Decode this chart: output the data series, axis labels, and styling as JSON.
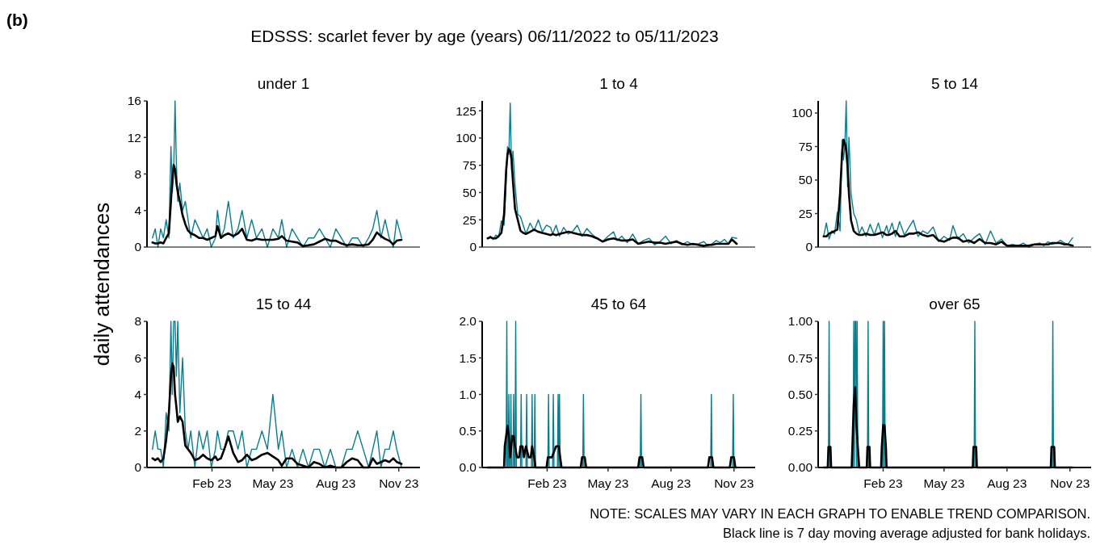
{
  "chart_data": [
    {
      "type": "other",
      "title": "EDSSS: scarlet fever by age (years) 06/11/2022 to 05/11/2023",
      "ylabel": "daily attendances",
      "annotations": [
        "(b)",
        "NOTE: SCALES MAY VARY IN EACH GRAPH TO ENABLE TREND COMPARISON.",
        "Black line is 7 day moving average adjusted for bank holidays."
      ]
    },
    {
      "type": "line",
      "title": "under 1",
      "xlim": [
        "2022-10-29",
        "2023-12-02"
      ],
      "ylim": [
        0,
        16
      ],
      "yticks": [
        0,
        4,
        8,
        12,
        16
      ],
      "tick_labels": "y",
      "x": [
        "2022-11-06",
        "2022-11-10",
        "2022-11-14",
        "2022-11-18",
        "2022-11-22",
        "2022-11-26",
        "2022-11-30",
        "2022-12-03",
        "2022-12-05",
        "2022-12-07",
        "2022-12-09",
        "2022-12-11",
        "2022-12-13",
        "2022-12-16",
        "2022-12-20",
        "2022-12-24",
        "2022-12-28",
        "2023-01-01",
        "2023-01-07",
        "2023-01-13",
        "2023-01-19",
        "2023-01-25",
        "2023-01-31",
        "2023-02-06",
        "2023-02-09",
        "2023-02-14",
        "2023-02-19",
        "2023-02-25",
        "2023-03-04",
        "2023-03-11",
        "2023-03-17",
        "2023-03-24",
        "2023-03-31",
        "2023-04-07",
        "2023-04-15",
        "2023-04-23",
        "2023-05-01",
        "2023-05-09",
        "2023-05-14",
        "2023-05-21",
        "2023-05-29",
        "2023-06-06",
        "2023-06-14",
        "2023-06-22",
        "2023-06-30",
        "2023-07-08",
        "2023-07-16",
        "2023-07-24",
        "2023-08-01",
        "2023-08-09",
        "2023-08-17",
        "2023-08-25",
        "2023-09-02",
        "2023-09-10",
        "2023-09-18",
        "2023-09-24",
        "2023-09-30",
        "2023-10-06",
        "2023-10-12",
        "2023-10-18",
        "2023-10-24",
        "2023-10-29",
        "2023-11-05"
      ],
      "series": [
        {
          "color": "#0a7d8c",
          "values": [
            1,
            2,
            0,
            2,
            1,
            3,
            1,
            11,
            6,
            8,
            16,
            9,
            5,
            7,
            4,
            5,
            3,
            1,
            3,
            2,
            1,
            2,
            0,
            1,
            4,
            1,
            2,
            5,
            1,
            2,
            4,
            1,
            3,
            1,
            2,
            0,
            2,
            1,
            3,
            0,
            2,
            1,
            0,
            1,
            1,
            2,
            1,
            0,
            2,
            1,
            0,
            1,
            1,
            0,
            1,
            2,
            4,
            1,
            3,
            1,
            0,
            3,
            1
          ]
        },
        {
          "color": "#000000",
          "values": [
            0.5,
            0.4,
            0.4,
            0.5,
            0.4,
            1,
            1.5,
            5,
            7.5,
            9,
            8.5,
            7,
            6,
            5,
            3.5,
            2.5,
            1.8,
            1.5,
            1.3,
            1,
            1,
            0.8,
            1,
            1.2,
            2.3,
            1,
            1.3,
            1.5,
            1.2,
            1.5,
            2,
            0.8,
            0.7,
            0.9,
            0.8,
            0.8,
            0.8,
            0.9,
            1.2,
            0.7,
            0.6,
            0.5,
            0.1,
            0.2,
            0.3,
            0.6,
            0.9,
            0.7,
            0.7,
            0.4,
            0.2,
            0.3,
            0.2,
            0.2,
            0.3,
            0.8,
            1.6,
            1.2,
            0.9,
            0.7,
            0.3,
            0.7,
            0.8
          ]
        }
      ]
    },
    {
      "type": "line",
      "title": "1 to 4",
      "xlim": [
        "2022-10-29",
        "2023-12-02"
      ],
      "ylim": [
        0,
        134
      ],
      "yticks": [
        0,
        25,
        50,
        75,
        100,
        125
      ],
      "tick_labels": "y",
      "x": [
        "2022-11-06",
        "2022-11-10",
        "2022-11-14",
        "2022-11-18",
        "2022-11-22",
        "2022-11-26",
        "2022-11-30",
        "2022-12-03",
        "2022-12-05",
        "2022-12-07",
        "2022-12-09",
        "2022-12-11",
        "2022-12-13",
        "2022-12-16",
        "2022-12-20",
        "2022-12-24",
        "2022-12-28",
        "2023-01-01",
        "2023-01-07",
        "2023-01-13",
        "2023-01-19",
        "2023-01-25",
        "2023-01-31",
        "2023-02-06",
        "2023-02-09",
        "2023-02-14",
        "2023-02-19",
        "2023-02-25",
        "2023-03-04",
        "2023-03-11",
        "2023-03-17",
        "2023-03-24",
        "2023-03-31",
        "2023-04-07",
        "2023-04-15",
        "2023-04-23",
        "2023-05-01",
        "2023-05-09",
        "2023-05-14",
        "2023-05-21",
        "2023-05-29",
        "2023-06-06",
        "2023-06-14",
        "2023-06-22",
        "2023-06-30",
        "2023-07-08",
        "2023-07-16",
        "2023-07-24",
        "2023-08-01",
        "2023-08-09",
        "2023-08-17",
        "2023-08-25",
        "2023-09-02",
        "2023-09-10",
        "2023-09-18",
        "2023-09-24",
        "2023-09-30",
        "2023-10-06",
        "2023-10-12",
        "2023-10-18",
        "2023-10-24",
        "2023-10-29",
        "2023-11-05"
      ],
      "series": [
        {
          "color": "#0a7d8c",
          "values": [
            8,
            10,
            7,
            11,
            9,
            24,
            20,
            60,
            92,
            85,
            132,
            70,
            88,
            57,
            30,
            28,
            20,
            12,
            22,
            15,
            25,
            14,
            20,
            18,
            12,
            20,
            10,
            18,
            12,
            15,
            20,
            10,
            17,
            12,
            8,
            5,
            10,
            14,
            6,
            10,
            4,
            12,
            3,
            6,
            8,
            2,
            5,
            10,
            3,
            6,
            2,
            5,
            2,
            3,
            5,
            1,
            3,
            6,
            4,
            7,
            3,
            9,
            8
          ]
        },
        {
          "color": "#000000",
          "values": [
            8,
            9,
            8,
            8,
            10,
            13,
            30,
            70,
            85,
            90,
            88,
            80,
            60,
            35,
            25,
            15,
            13,
            12,
            14,
            16,
            14,
            13,
            12,
            11,
            12,
            11,
            12,
            13,
            14,
            13,
            12,
            11,
            11,
            10,
            8,
            5,
            7,
            8,
            7,
            6,
            6,
            7,
            3,
            4,
            5,
            4,
            4,
            3,
            4,
            5,
            3,
            2,
            3,
            2,
            1,
            2,
            2,
            3,
            3,
            3,
            3,
            7,
            3
          ]
        }
      ]
    },
    {
      "type": "line",
      "title": "5 to 14",
      "xlim": [
        "2022-10-29",
        "2023-12-02"
      ],
      "ylim": [
        0,
        109
      ],
      "yticks": [
        0,
        25,
        50,
        75,
        100
      ],
      "tick_labels": "y",
      "x": [
        "2022-11-06",
        "2022-11-10",
        "2022-11-14",
        "2022-11-18",
        "2022-11-22",
        "2022-11-26",
        "2022-11-30",
        "2022-12-03",
        "2022-12-05",
        "2022-12-07",
        "2022-12-09",
        "2022-12-11",
        "2022-12-13",
        "2022-12-16",
        "2022-12-20",
        "2022-12-24",
        "2022-12-28",
        "2023-01-01",
        "2023-01-07",
        "2023-01-13",
        "2023-01-19",
        "2023-01-25",
        "2023-01-31",
        "2023-02-06",
        "2023-02-09",
        "2023-02-14",
        "2023-02-19",
        "2023-02-25",
        "2023-03-04",
        "2023-03-11",
        "2023-03-17",
        "2023-03-24",
        "2023-03-31",
        "2023-04-07",
        "2023-04-15",
        "2023-04-23",
        "2023-05-01",
        "2023-05-09",
        "2023-05-14",
        "2023-05-21",
        "2023-05-29",
        "2023-06-06",
        "2023-06-14",
        "2023-06-22",
        "2023-06-30",
        "2023-07-08",
        "2023-07-16",
        "2023-07-24",
        "2023-08-01",
        "2023-08-09",
        "2023-08-17",
        "2023-08-25",
        "2023-09-02",
        "2023-09-10",
        "2023-09-18",
        "2023-09-24",
        "2023-09-30",
        "2023-10-06",
        "2023-10-12",
        "2023-10-18",
        "2023-10-24",
        "2023-10-29",
        "2023-11-05"
      ],
      "series": [
        {
          "color": "#0a7d8c",
          "values": [
            8,
            18,
            6,
            12,
            10,
            26,
            12,
            80,
            65,
            75,
            109,
            45,
            82,
            40,
            25,
            20,
            10,
            15,
            8,
            17,
            9,
            18,
            7,
            16,
            10,
            18,
            8,
            19,
            9,
            15,
            20,
            8,
            12,
            10,
            15,
            4,
            8,
            5,
            16,
            6,
            10,
            3,
            7,
            10,
            2,
            12,
            3,
            6,
            1,
            2,
            1,
            3,
            0,
            2,
            3,
            1,
            4,
            2,
            3,
            5,
            3,
            2,
            7
          ]
        },
        {
          "color": "#000000",
          "values": [
            8,
            8,
            10,
            11,
            12,
            13,
            40,
            70,
            80,
            78,
            72,
            60,
            40,
            20,
            12,
            10,
            9,
            9,
            10,
            9,
            9,
            10,
            11,
            9,
            9,
            10,
            12,
            8,
            8,
            10,
            10,
            11,
            9,
            8,
            9,
            5,
            4,
            6,
            7,
            7,
            4,
            5,
            3,
            6,
            3,
            3,
            2,
            4,
            1,
            1,
            1,
            1,
            1,
            2,
            2,
            2,
            2,
            3,
            3,
            3,
            2,
            2,
            1
          ]
        }
      ]
    },
    {
      "type": "line",
      "title": "15 to 44",
      "xlim": [
        "2022-10-29",
        "2023-12-02"
      ],
      "ylim": [
        0,
        8
      ],
      "yticks": [
        0,
        2,
        4,
        6,
        8
      ],
      "xticks": [
        {
          "value": "2023-02-01",
          "label": "Feb 23"
        },
        {
          "value": "2023-05-01",
          "label": "May 23"
        },
        {
          "value": "2023-08-01",
          "label": "Aug 23"
        },
        {
          "value": "2023-11-01",
          "label": "Nov 23"
        }
      ],
      "x": [
        "2022-11-06",
        "2022-11-10",
        "2022-11-14",
        "2022-11-18",
        "2022-11-22",
        "2022-11-26",
        "2022-11-30",
        "2022-12-03",
        "2022-12-05",
        "2022-12-07",
        "2022-12-09",
        "2022-12-11",
        "2022-12-13",
        "2022-12-16",
        "2022-12-20",
        "2022-12-24",
        "2022-12-28",
        "2023-01-01",
        "2023-01-07",
        "2023-01-13",
        "2023-01-19",
        "2023-01-25",
        "2023-01-31",
        "2023-02-06",
        "2023-02-09",
        "2023-02-14",
        "2023-02-19",
        "2023-02-25",
        "2023-03-04",
        "2023-03-11",
        "2023-03-17",
        "2023-03-24",
        "2023-03-31",
        "2023-04-07",
        "2023-04-15",
        "2023-04-23",
        "2023-05-01",
        "2023-05-09",
        "2023-05-14",
        "2023-05-21",
        "2023-05-29",
        "2023-06-06",
        "2023-06-14",
        "2023-06-22",
        "2023-06-30",
        "2023-07-08",
        "2023-07-16",
        "2023-07-24",
        "2023-08-01",
        "2023-08-09",
        "2023-08-17",
        "2023-08-25",
        "2023-09-02",
        "2023-09-10",
        "2023-09-18",
        "2023-09-24",
        "2023-09-30",
        "2023-10-06",
        "2023-10-12",
        "2023-10-18",
        "2023-10-24",
        "2023-10-29",
        "2023-11-05"
      ],
      "series": [
        {
          "color": "#0a7d8c",
          "values": [
            1,
            2,
            1,
            1,
            0,
            3,
            2,
            8,
            4,
            8,
            8,
            5,
            8,
            3,
            6,
            2,
            1,
            2,
            0,
            2,
            1,
            2,
            0,
            1,
            2,
            1,
            1,
            2,
            2,
            1,
            2,
            0,
            1,
            1,
            2,
            1,
            4,
            1,
            2,
            0,
            1,
            0,
            1,
            0,
            1,
            1,
            0,
            1,
            0,
            0,
            1,
            1,
            2,
            1,
            0,
            1,
            2,
            0,
            1,
            1,
            2,
            1,
            0
          ]
        },
        {
          "color": "#000000",
          "values": [
            0.5,
            0.4,
            0.5,
            0.3,
            0.5,
            1.5,
            3,
            5,
            5.7,
            5.5,
            4,
            3.3,
            2.5,
            2.8,
            2.5,
            1.2,
            1,
            0.8,
            0.4,
            0.5,
            0.7,
            0.5,
            0.4,
            0.6,
            0.4,
            0.5,
            1,
            1.7,
            0.8,
            0.3,
            0.4,
            0.7,
            0.4,
            0.5,
            0.7,
            0.8,
            0.6,
            0.4,
            0.1,
            0.5,
            0.5,
            0.2,
            0.1,
            0,
            0.3,
            0.2,
            0,
            0.1,
            0,
            0,
            0.3,
            0.5,
            0.4,
            0,
            0,
            0.5,
            0.2,
            0.3,
            0.4,
            0.3,
            0.5,
            0.3,
            0.2
          ]
        }
      ]
    },
    {
      "type": "line",
      "title": "45 to 64",
      "xlim": [
        "2022-10-29",
        "2023-12-02"
      ],
      "ylim": [
        0,
        2
      ],
      "yticks": [
        {
          "value": 0,
          "label": "0.0"
        },
        {
          "value": 0.5,
          "label": "0.5"
        },
        {
          "value": 1,
          "label": "1.0"
        },
        {
          "value": 1.5,
          "label": "1.5"
        },
        {
          "value": 2,
          "label": "2.0"
        }
      ],
      "xticks": [
        {
          "value": "2023-02-01",
          "label": "Feb 23"
        },
        {
          "value": "2023-05-01",
          "label": "May 23"
        },
        {
          "value": "2023-08-01",
          "label": "Aug 23"
        },
        {
          "value": "2023-11-01",
          "label": "Nov 23"
        }
      ],
      "series": [
        {
          "color": "#0a7d8c",
          "x": [
            "2022-11-06",
            "2022-12-03",
            "2022-12-04",
            "2022-12-05",
            "2022-12-06",
            "2022-12-07",
            "2022-12-08",
            "2022-12-09",
            "2022-12-10",
            "2022-12-11",
            "2022-12-13",
            "2022-12-14",
            "2022-12-15",
            "2022-12-16",
            "2022-12-17",
            "2022-12-18",
            "2022-12-24",
            "2022-12-25",
            "2022-12-26",
            "2023-01-01",
            "2023-01-02",
            "2023-01-03",
            "2023-01-09",
            "2023-01-10",
            "2023-01-11",
            "2023-01-13",
            "2023-01-14",
            "2023-01-15",
            "2023-02-02",
            "2023-02-03",
            "2023-02-04",
            "2023-02-09",
            "2023-02-10",
            "2023-02-11",
            "2023-02-16",
            "2023-02-17",
            "2023-02-18",
            "2023-02-19",
            "2023-02-20",
            "2023-03-25",
            "2023-03-26",
            "2023-03-27",
            "2023-06-17",
            "2023-06-18",
            "2023-06-19",
            "2023-09-28",
            "2023-09-29",
            "2023-09-30",
            "2023-10-30",
            "2023-10-31",
            "2023-11-01",
            "2023-11-05"
          ],
          "values": [
            0,
            0,
            2,
            0,
            0,
            1,
            0,
            0,
            1,
            0,
            0,
            1,
            0,
            0,
            2,
            0,
            0,
            1,
            0,
            0,
            1,
            0,
            0,
            1,
            0,
            0,
            1,
            0,
            0,
            1,
            0,
            0,
            1,
            0,
            0,
            1,
            0,
            1,
            0,
            0,
            1,
            0,
            0,
            1,
            0,
            0,
            1,
            0,
            0,
            1,
            0,
            0
          ]
        },
        {
          "color": "#000000",
          "x": [
            "2022-11-06",
            "2022-11-30",
            "2022-12-01",
            "2022-12-03",
            "2022-12-05",
            "2022-12-07",
            "2022-12-09",
            "2022-12-12",
            "2022-12-14",
            "2022-12-16",
            "2022-12-19",
            "2022-12-22",
            "2022-12-24",
            "2022-12-27",
            "2022-12-29",
            "2023-01-01",
            "2023-01-05",
            "2023-01-08",
            "2023-01-10",
            "2023-01-13",
            "2023-01-15",
            "2023-01-31",
            "2023-02-02",
            "2023-02-08",
            "2023-02-14",
            "2023-02-18",
            "2023-02-20",
            "2023-02-22",
            "2023-03-22",
            "2023-03-24",
            "2023-03-28",
            "2023-03-30",
            "2023-06-14",
            "2023-06-16",
            "2023-06-20",
            "2023-06-22",
            "2023-09-24",
            "2023-09-26",
            "2023-09-30",
            "2023-10-02",
            "2023-10-26",
            "2023-10-28",
            "2023-11-01",
            "2023-11-03",
            "2023-11-05"
          ],
          "values": [
            0,
            0,
            0.29,
            0.43,
            0.57,
            0.43,
            0.14,
            0.43,
            0.43,
            0.29,
            0.14,
            0.14,
            0.29,
            0.29,
            0.14,
            0.29,
            0.14,
            0.14,
            0.29,
            0.14,
            0,
            0,
            0.14,
            0.14,
            0.29,
            0.29,
            0.14,
            0,
            0,
            0.14,
            0.14,
            0,
            0,
            0.14,
            0.14,
            0,
            0,
            0.14,
            0.14,
            0,
            0,
            0.14,
            0.14,
            0,
            0
          ]
        }
      ]
    },
    {
      "type": "line",
      "title": "over 65",
      "xlim": [
        "2022-10-29",
        "2023-12-02"
      ],
      "ylim": [
        0,
        1
      ],
      "yticks": [
        {
          "value": 0,
          "label": "0.00"
        },
        {
          "value": 0.25,
          "label": "0.25"
        },
        {
          "value": 0.5,
          "label": "0.50"
        },
        {
          "value": 0.75,
          "label": "0.75"
        },
        {
          "value": 1,
          "label": "1.00"
        }
      ],
      "xticks": [
        {
          "value": "2023-02-01",
          "label": "Feb 23"
        },
        {
          "value": "2023-05-01",
          "label": "May 23"
        },
        {
          "value": "2023-08-01",
          "label": "Aug 23"
        },
        {
          "value": "2023-11-01",
          "label": "Nov 23"
        }
      ],
      "series": [
        {
          "color": "#0a7d8c",
          "x": [
            "2022-11-06",
            "2022-11-13",
            "2022-11-14",
            "2022-11-15",
            "2022-12-19",
            "2022-12-20",
            "2022-12-21",
            "2022-12-22",
            "2022-12-23",
            "2022-12-24",
            "2022-12-25",
            "2022-12-26",
            "2023-01-09",
            "2023-01-10",
            "2023-01-11",
            "2023-01-31",
            "2023-02-01",
            "2023-02-02",
            "2023-02-03",
            "2023-02-04",
            "2023-06-14",
            "2023-06-15",
            "2023-06-16",
            "2023-10-06",
            "2023-10-07",
            "2023-10-08",
            "2023-11-05"
          ],
          "values": [
            0,
            0,
            1,
            0,
            0,
            1,
            0,
            1,
            1,
            0,
            1,
            0,
            0,
            1,
            0,
            0,
            1,
            0,
            1,
            0,
            0,
            1,
            0,
            0,
            1,
            0,
            0
          ]
        },
        {
          "color": "#000000",
          "x": [
            "2022-11-06",
            "2022-11-12",
            "2022-11-13",
            "2022-11-16",
            "2022-11-17",
            "2022-12-17",
            "2022-12-18",
            "2022-12-20",
            "2022-12-22",
            "2022-12-24",
            "2022-12-26",
            "2022-12-28",
            "2023-01-08",
            "2023-01-09",
            "2023-01-12",
            "2023-01-13",
            "2023-01-29",
            "2023-01-30",
            "2023-02-01",
            "2023-02-03",
            "2023-02-05",
            "2023-02-06",
            "2023-06-12",
            "2023-06-13",
            "2023-06-17",
            "2023-06-18",
            "2023-10-04",
            "2023-10-05",
            "2023-10-09",
            "2023-10-10",
            "2023-11-05"
          ],
          "values": [
            0,
            0,
            0.14,
            0.14,
            0,
            0,
            0.14,
            0.43,
            0.55,
            0.29,
            0.14,
            0,
            0,
            0.14,
            0.14,
            0,
            0,
            0.14,
            0.29,
            0.29,
            0.14,
            0,
            0,
            0.14,
            0.14,
            0,
            0,
            0.14,
            0.14,
            0,
            0
          ]
        }
      ]
    }
  ]
}
